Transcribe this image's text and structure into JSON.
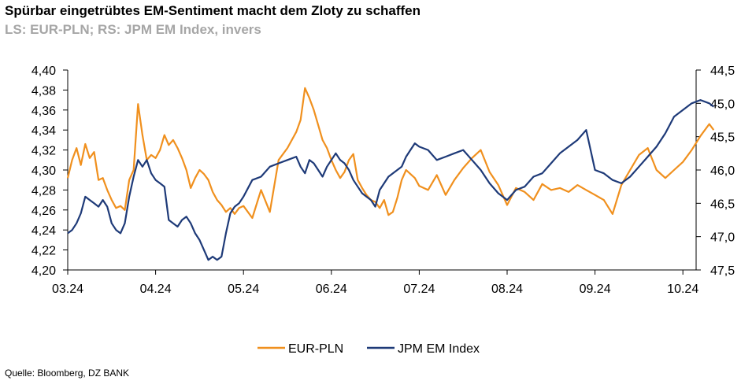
{
  "header": {
    "title": "Spürbar eingetrübtes EM-Sentiment macht dem Zloty zu schaffen",
    "subtitle": "LS: EUR-PLN; RS: JPM EM Index, invers"
  },
  "footer": {
    "source": "Quelle: Bloomberg, DZ BANK"
  },
  "chart_data": {
    "type": "line",
    "x_tick_labels": [
      "03.24",
      "04.24",
      "05.24",
      "06.24",
      "07.24",
      "08.24",
      "09.24",
      "10.24"
    ],
    "left_axis": {
      "min": 4.2,
      "max": 4.4,
      "step": 0.02,
      "tick_labels": [
        "4,40",
        "4,38",
        "4,36",
        "4,34",
        "4,32",
        "4,30",
        "4,28",
        "4,26",
        "4,24",
        "4,22",
        "4,20"
      ]
    },
    "right_axis": {
      "inverted": true,
      "min": 44.5,
      "max": 47.5,
      "step": 0.5,
      "tick_labels": [
        "44,5",
        "45,0",
        "45,5",
        "46,0",
        "46,5",
        "47,0",
        "47,5"
      ]
    },
    "legend_position": "bottom",
    "series": [
      {
        "name": "EUR-PLN",
        "axis": "left",
        "color": "#f0901e",
        "x": [
          0,
          0.05,
          0.1,
          0.15,
          0.2,
          0.25,
          0.3,
          0.35,
          0.4,
          0.45,
          0.5,
          0.55,
          0.6,
          0.65,
          0.7,
          0.75,
          0.8,
          0.85,
          0.9,
          0.95,
          1.0,
          1.05,
          1.1,
          1.15,
          1.2,
          1.25,
          1.3,
          1.35,
          1.4,
          1.45,
          1.5,
          1.55,
          1.6,
          1.65,
          1.7,
          1.75,
          1.8,
          1.85,
          1.9,
          1.95,
          2.0,
          2.1,
          2.2,
          2.3,
          2.4,
          2.5,
          2.6,
          2.65,
          2.7,
          2.75,
          2.8,
          2.85,
          2.9,
          2.95,
          3.0,
          3.05,
          3.1,
          3.15,
          3.2,
          3.25,
          3.3,
          3.35,
          3.4,
          3.45,
          3.5,
          3.55,
          3.6,
          3.65,
          3.7,
          3.75,
          3.8,
          3.85,
          3.9,
          3.95,
          4.0,
          4.1,
          4.2,
          4.3,
          4.4,
          4.5,
          4.6,
          4.7,
          4.8,
          4.9,
          5.0,
          5.1,
          5.2,
          5.3,
          5.4,
          5.5,
          5.6,
          5.7,
          5.8,
          5.9,
          6.0,
          6.1,
          6.2,
          6.3,
          6.4,
          6.5,
          6.6,
          6.7,
          6.8,
          6.9,
          7.0,
          7.1,
          7.2,
          7.3,
          7.35
        ],
        "values": [
          4.292,
          4.31,
          4.322,
          4.305,
          4.326,
          4.312,
          4.318,
          4.29,
          4.292,
          4.28,
          4.27,
          4.262,
          4.264,
          4.26,
          4.29,
          4.3,
          4.366,
          4.335,
          4.31,
          4.315,
          4.312,
          4.32,
          4.335,
          4.325,
          4.33,
          4.322,
          4.312,
          4.3,
          4.282,
          4.292,
          4.3,
          4.296,
          4.29,
          4.278,
          4.27,
          4.265,
          4.258,
          4.262,
          4.256,
          4.262,
          4.264,
          4.252,
          4.28,
          4.258,
          4.31,
          4.322,
          4.338,
          4.35,
          4.382,
          4.372,
          4.36,
          4.345,
          4.33,
          4.322,
          4.31,
          4.3,
          4.292,
          4.298,
          4.31,
          4.316,
          4.29,
          4.282,
          4.275,
          4.27,
          4.268,
          4.262,
          4.27,
          4.255,
          4.258,
          4.272,
          4.29,
          4.3,
          4.296,
          4.292,
          4.284,
          4.28,
          4.295,
          4.275,
          4.29,
          4.302,
          4.312,
          4.32,
          4.298,
          4.285,
          4.265,
          4.282,
          4.278,
          4.27,
          4.286,
          4.28,
          4.282,
          4.278,
          4.285,
          4.28,
          4.275,
          4.27,
          4.256,
          4.285,
          4.3,
          4.315,
          4.322,
          4.3,
          4.292,
          4.3,
          4.308,
          4.32,
          4.334,
          4.346,
          4.34
        ]
      },
      {
        "name": "JPM EM Index",
        "axis": "right",
        "color": "#1e3a78",
        "x": [
          0,
          0.05,
          0.1,
          0.15,
          0.2,
          0.25,
          0.3,
          0.35,
          0.4,
          0.45,
          0.5,
          0.55,
          0.6,
          0.65,
          0.7,
          0.75,
          0.8,
          0.85,
          0.9,
          0.95,
          1.0,
          1.05,
          1.1,
          1.15,
          1.2,
          1.25,
          1.3,
          1.35,
          1.4,
          1.45,
          1.5,
          1.55,
          1.6,
          1.65,
          1.7,
          1.75,
          1.8,
          1.85,
          1.9,
          1.95,
          2.0,
          2.1,
          2.2,
          2.3,
          2.4,
          2.5,
          2.6,
          2.65,
          2.7,
          2.75,
          2.8,
          2.85,
          2.9,
          2.95,
          3.0,
          3.05,
          3.1,
          3.15,
          3.2,
          3.25,
          3.3,
          3.35,
          3.4,
          3.45,
          3.5,
          3.55,
          3.6,
          3.65,
          3.7,
          3.75,
          3.8,
          3.85,
          3.9,
          3.95,
          4.0,
          4.1,
          4.2,
          4.3,
          4.4,
          4.5,
          4.6,
          4.7,
          4.8,
          4.9,
          5.0,
          5.1,
          5.2,
          5.3,
          5.4,
          5.5,
          5.6,
          5.7,
          5.8,
          5.9,
          6.0,
          6.1,
          6.2,
          6.3,
          6.4,
          6.5,
          6.6,
          6.7,
          6.8,
          6.9,
          7.0,
          7.1,
          7.2,
          7.3,
          7.35
        ],
        "values": [
          46.95,
          46.9,
          46.8,
          46.65,
          46.4,
          46.45,
          46.5,
          46.55,
          46.45,
          46.55,
          46.8,
          46.9,
          46.95,
          46.8,
          46.4,
          46.1,
          45.85,
          45.95,
          45.85,
          46.05,
          46.15,
          46.2,
          46.25,
          46.75,
          46.8,
          46.85,
          46.75,
          46.7,
          46.8,
          46.95,
          47.05,
          47.2,
          47.35,
          47.3,
          47.35,
          47.3,
          46.95,
          46.65,
          46.55,
          46.5,
          46.4,
          46.15,
          46.1,
          45.95,
          45.9,
          45.85,
          45.8,
          45.95,
          46.05,
          45.85,
          45.9,
          46.0,
          46.1,
          45.95,
          45.85,
          45.75,
          45.85,
          45.9,
          46.0,
          46.15,
          46.25,
          46.35,
          46.4,
          46.45,
          46.55,
          46.3,
          46.2,
          46.1,
          46.05,
          46.0,
          45.95,
          45.8,
          45.7,
          45.6,
          45.65,
          45.7,
          45.85,
          45.8,
          45.75,
          45.7,
          45.85,
          46.0,
          46.2,
          46.35,
          46.45,
          46.3,
          46.25,
          46.1,
          46.05,
          45.9,
          45.75,
          45.65,
          45.55,
          45.4,
          46.0,
          46.05,
          46.15,
          46.2,
          46.1,
          45.95,
          45.8,
          45.65,
          45.45,
          45.2,
          45.1,
          45.0,
          44.95,
          45.0,
          45.05
        ]
      }
    ]
  }
}
